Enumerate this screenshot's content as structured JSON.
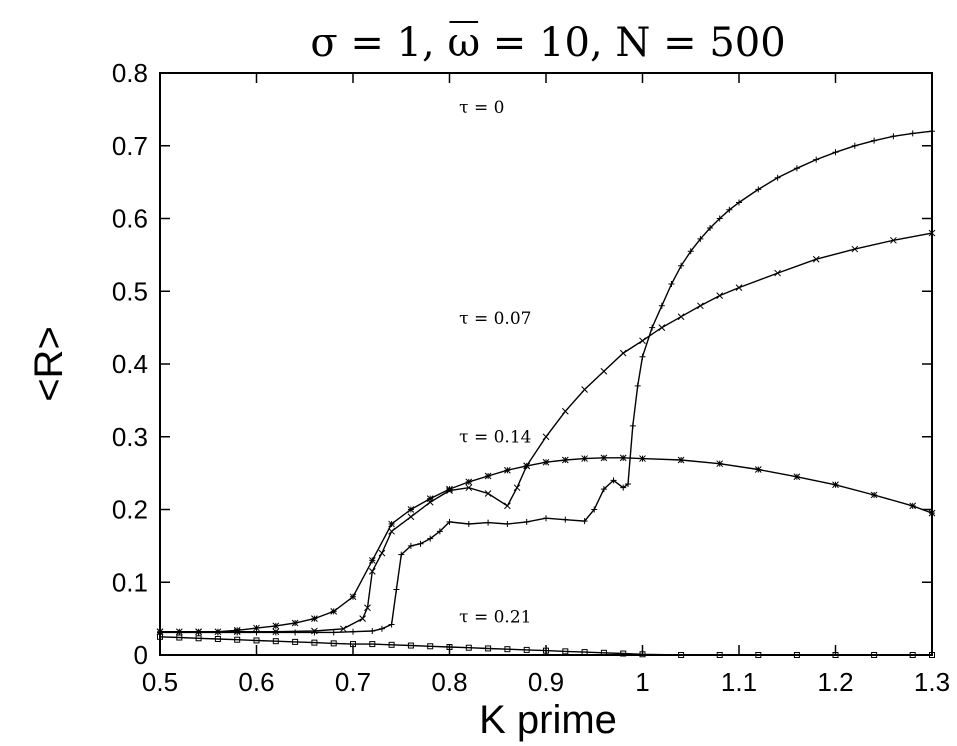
{
  "chart_data": {
    "type": "line",
    "title": {
      "pre": "σ = 1,   ",
      "omega": "ω",
      "post": " = 10, N = 500"
    },
    "xlabel": "K prime",
    "ylabel": "<R>",
    "xlim": [
      0.5,
      1.3
    ],
    "ylim": [
      0,
      0.8
    ],
    "xticks": [
      0.5,
      0.6,
      0.7,
      0.8,
      0.9,
      1,
      1.1,
      1.2,
      1.3
    ],
    "xtick_labels": [
      "0.5",
      "0.6",
      "0.7",
      "0.8",
      "0.9",
      "1",
      "1.1",
      "1.2",
      "1.3"
    ],
    "yticks": [
      0,
      0.1,
      0.2,
      0.3,
      0.4,
      0.5,
      0.6,
      0.7,
      0.8
    ],
    "ytick_labels": [
      "0",
      "0.1",
      "0.2",
      "0.3",
      "0.4",
      "0.5",
      "0.6",
      "0.7",
      "0.8"
    ],
    "grid": false,
    "legend": "none (inline curve labels)",
    "series": [
      {
        "name": "τ = 0",
        "marker": "plus",
        "label_at": [
          0.81,
          0.745
        ],
        "x": [
          0.5,
          0.52,
          0.54,
          0.56,
          0.58,
          0.6,
          0.62,
          0.64,
          0.66,
          0.68,
          0.7,
          0.72,
          0.73,
          0.74,
          0.745,
          0.75,
          0.76,
          0.77,
          0.78,
          0.79,
          0.8,
          0.82,
          0.84,
          0.86,
          0.88,
          0.9,
          0.92,
          0.94,
          0.95,
          0.96,
          0.97,
          0.98,
          0.985,
          0.99,
          0.995,
          1.0,
          1.01,
          1.02,
          1.03,
          1.04,
          1.05,
          1.06,
          1.07,
          1.08,
          1.09,
          1.1,
          1.12,
          1.14,
          1.16,
          1.18,
          1.2,
          1.22,
          1.24,
          1.26,
          1.28,
          1.3
        ],
        "y": [
          0.031,
          0.031,
          0.031,
          0.031,
          0.031,
          0.031,
          0.031,
          0.031,
          0.031,
          0.031,
          0.032,
          0.033,
          0.036,
          0.042,
          0.09,
          0.138,
          0.15,
          0.153,
          0.16,
          0.17,
          0.183,
          0.18,
          0.182,
          0.18,
          0.183,
          0.188,
          0.186,
          0.184,
          0.2,
          0.228,
          0.24,
          0.23,
          0.235,
          0.315,
          0.37,
          0.41,
          0.45,
          0.48,
          0.51,
          0.535,
          0.555,
          0.572,
          0.587,
          0.6,
          0.612,
          0.622,
          0.64,
          0.656,
          0.669,
          0.681,
          0.691,
          0.7,
          0.707,
          0.713,
          0.717,
          0.72
        ]
      },
      {
        "name": "τ = 0.07",
        "marker": "x",
        "label_at": [
          0.81,
          0.455
        ],
        "x": [
          0.5,
          0.54,
          0.58,
          0.62,
          0.66,
          0.69,
          0.71,
          0.715,
          0.72,
          0.73,
          0.74,
          0.76,
          0.78,
          0.8,
          0.82,
          0.84,
          0.86,
          0.87,
          0.88,
          0.9,
          0.92,
          0.94,
          0.96,
          0.98,
          1.0,
          1.02,
          1.04,
          1.06,
          1.08,
          1.1,
          1.14,
          1.18,
          1.22,
          1.26,
          1.3
        ],
        "y": [
          0.032,
          0.032,
          0.032,
          0.032,
          0.033,
          0.036,
          0.05,
          0.065,
          0.115,
          0.14,
          0.17,
          0.19,
          0.21,
          0.226,
          0.23,
          0.222,
          0.205,
          0.23,
          0.26,
          0.3,
          0.335,
          0.365,
          0.39,
          0.415,
          0.432,
          0.45,
          0.465,
          0.48,
          0.494,
          0.505,
          0.525,
          0.544,
          0.558,
          0.57,
          0.58
        ]
      },
      {
        "name": "τ = 0.14",
        "marker": "star",
        "label_at": [
          0.81,
          0.292
        ],
        "x": [
          0.5,
          0.52,
          0.54,
          0.56,
          0.58,
          0.6,
          0.62,
          0.64,
          0.66,
          0.68,
          0.7,
          0.72,
          0.74,
          0.76,
          0.78,
          0.8,
          0.82,
          0.84,
          0.86,
          0.88,
          0.9,
          0.92,
          0.94,
          0.96,
          0.98,
          1.0,
          1.04,
          1.08,
          1.12,
          1.16,
          1.2,
          1.24,
          1.28,
          1.3
        ],
        "y": [
          0.032,
          0.032,
          0.032,
          0.032,
          0.034,
          0.037,
          0.04,
          0.044,
          0.05,
          0.06,
          0.08,
          0.13,
          0.18,
          0.2,
          0.215,
          0.228,
          0.238,
          0.246,
          0.254,
          0.26,
          0.265,
          0.268,
          0.27,
          0.271,
          0.271,
          0.27,
          0.268,
          0.263,
          0.255,
          0.245,
          0.234,
          0.22,
          0.205,
          0.195
        ]
      },
      {
        "name": "τ = 0.21",
        "marker": "square",
        "label_at": [
          0.81,
          0.045
        ],
        "x": [
          0.5,
          0.52,
          0.54,
          0.56,
          0.58,
          0.6,
          0.62,
          0.64,
          0.66,
          0.68,
          0.7,
          0.72,
          0.74,
          0.76,
          0.78,
          0.8,
          0.82,
          0.84,
          0.86,
          0.88,
          0.9,
          0.92,
          0.94,
          0.96,
          0.98,
          1.0,
          1.04,
          1.08,
          1.12,
          1.16,
          1.2,
          1.24,
          1.28,
          1.3
        ],
        "y": [
          0.025,
          0.024,
          0.023,
          0.022,
          0.021,
          0.02,
          0.019,
          0.018,
          0.017,
          0.016,
          0.015,
          0.015,
          0.014,
          0.013,
          0.012,
          0.011,
          0.01,
          0.009,
          0.008,
          0.007,
          0.006,
          0.005,
          0.004,
          0.003,
          0.002,
          0.001,
          0.0,
          0.0,
          0.0,
          0.0,
          0.0,
          0.0,
          0.0,
          0.0
        ]
      }
    ]
  }
}
